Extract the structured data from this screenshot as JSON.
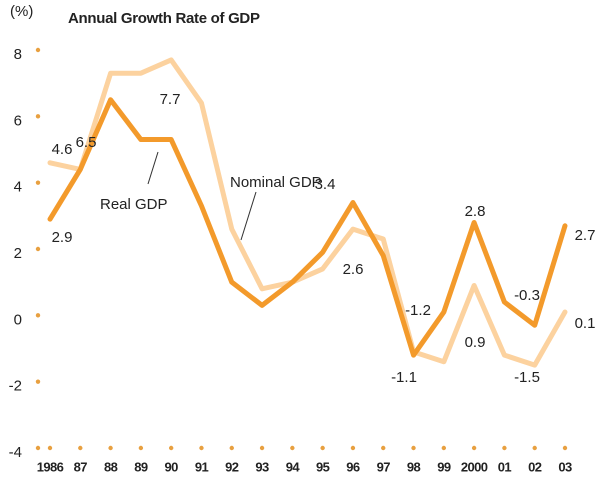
{
  "chart_data": {
    "type": "line",
    "title": "Annual Growth Rate of GDP",
    "y_unit": "(%)",
    "categories": [
      "1986",
      "87",
      "88",
      "89",
      "90",
      "91",
      "92",
      "93",
      "94",
      "95",
      "96",
      "97",
      "98",
      "99",
      "2000",
      "01",
      "02",
      "03"
    ],
    "series": [
      {
        "name": "Nominal GDP",
        "color": "#fcd29f",
        "values": [
          4.6,
          4.4,
          7.3,
          7.3,
          7.7,
          6.4,
          2.6,
          0.8,
          1.0,
          1.4,
          2.6,
          2.3,
          -1.1,
          -1.4,
          0.9,
          -1.2,
          -1.5,
          0.1
        ],
        "value_labels": [
          "4.6",
          null,
          null,
          null,
          "7.7",
          null,
          null,
          null,
          null,
          null,
          "2.6",
          null,
          "-1.1",
          null,
          "0.9",
          null,
          "-1.5",
          "0.1"
        ]
      },
      {
        "name": "Real GDP",
        "color": "#f39a2b",
        "values": [
          2.9,
          4.4,
          6.5,
          5.3,
          5.3,
          3.3,
          1.0,
          0.3,
          1.0,
          1.9,
          3.4,
          1.8,
          -1.2,
          0.1,
          2.8,
          0.4,
          -0.3,
          2.7
        ],
        "value_labels": [
          "2.9",
          null,
          "6.5",
          null,
          null,
          null,
          null,
          null,
          null,
          null,
          "3.4",
          null,
          "-1.2",
          null,
          "2.8",
          null,
          "-0.3",
          "2.7"
        ]
      }
    ],
    "ylim": [
      -4,
      8
    ],
    "yticks": [
      -4,
      -2,
      0,
      2,
      4,
      6,
      8
    ],
    "grid": false
  }
}
